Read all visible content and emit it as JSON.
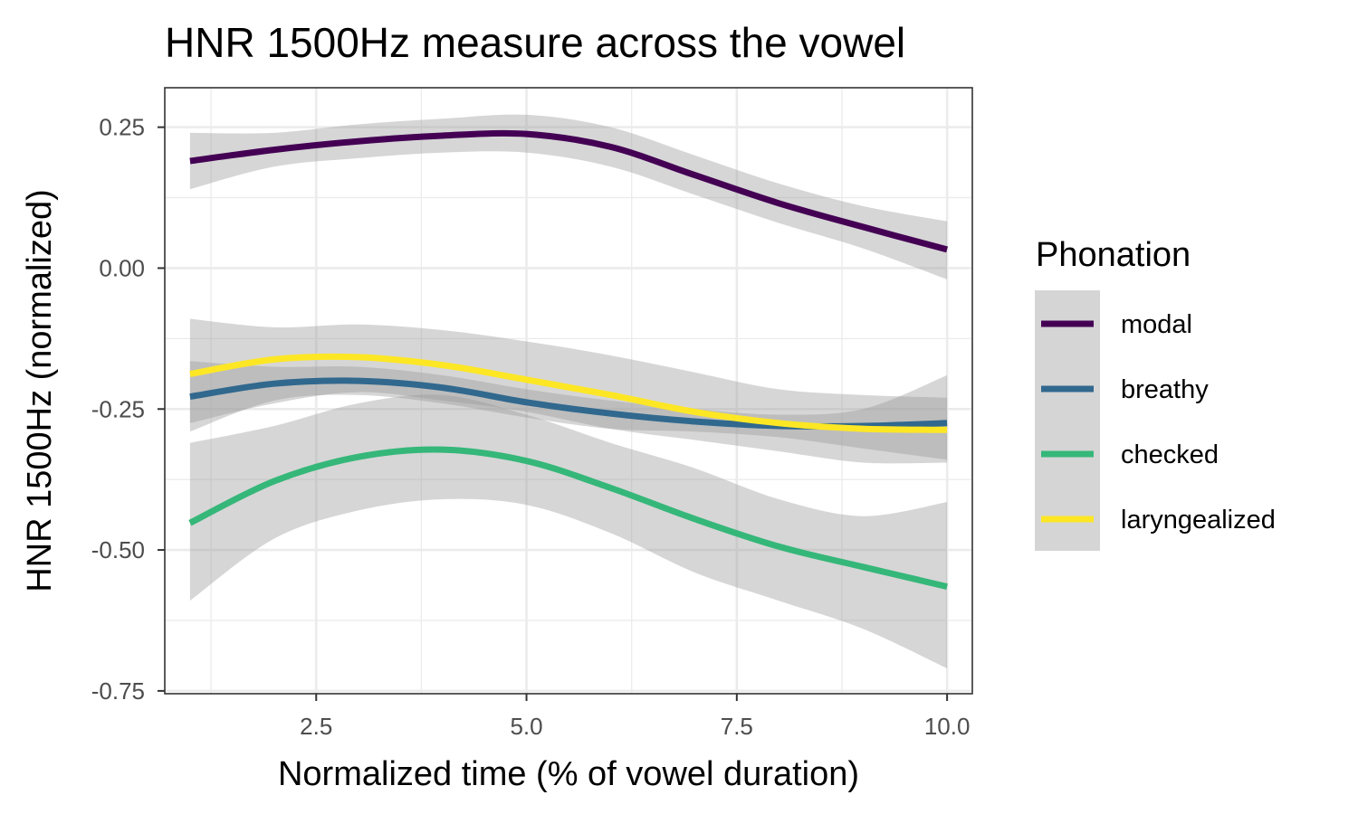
{
  "chart_data": {
    "type": "line",
    "title": "HNR 1500Hz measure across the vowel",
    "xlabel": "Normalized time (% of vowel duration)",
    "ylabel": "HNR 1500Hz (normalized)",
    "xlim": [
      0.7,
      10.3
    ],
    "ylim": [
      -0.755,
      0.32
    ],
    "xticks": [
      2.5,
      5.0,
      7.5,
      10.0
    ],
    "xtick_labels": [
      "2.5",
      "5.0",
      "7.5",
      "10.0"
    ],
    "yticks": [
      0.25,
      0.0,
      -0.25,
      -0.5,
      -0.75
    ],
    "ytick_labels": [
      "0.25",
      "0.00",
      "-0.25",
      "-0.50",
      "-0.75"
    ],
    "x_minor_gridlines": [
      1.25,
      3.75,
      6.25,
      8.75
    ],
    "y_minor_gridlines": [
      0.125,
      -0.125,
      -0.375,
      -0.625
    ],
    "grid": true,
    "legend": {
      "title": "Phonation",
      "position": "right"
    },
    "series": [
      {
        "name": "modal",
        "color": "#440154",
        "x": [
          1,
          2,
          3,
          4,
          5,
          6,
          7,
          8,
          9,
          10
        ],
        "y": [
          0.19,
          0.21,
          0.225,
          0.235,
          0.238,
          0.215,
          0.165,
          0.115,
          0.073,
          0.033
        ],
        "lower": [
          0.14,
          0.18,
          0.195,
          0.205,
          0.205,
          0.18,
          0.13,
          0.08,
          0.035,
          -0.02
        ],
        "upper": [
          0.24,
          0.24,
          0.255,
          0.265,
          0.272,
          0.25,
          0.2,
          0.15,
          0.11,
          0.083
        ]
      },
      {
        "name": "breathy",
        "color": "#31688e",
        "x": [
          1,
          2,
          3,
          4,
          5,
          6,
          7,
          8,
          9,
          10
        ],
        "y": [
          -0.228,
          -0.205,
          -0.2,
          -0.212,
          -0.238,
          -0.258,
          -0.272,
          -0.28,
          -0.28,
          -0.275
        ],
        "lower": [
          -0.29,
          -0.235,
          -0.225,
          -0.24,
          -0.265,
          -0.285,
          -0.29,
          -0.3,
          -0.32,
          -0.34
        ],
        "upper": [
          -0.165,
          -0.175,
          -0.175,
          -0.19,
          -0.215,
          -0.235,
          -0.25,
          -0.26,
          -0.25,
          -0.19
        ]
      },
      {
        "name": "checked",
        "color": "#35b779",
        "x": [
          1,
          2,
          3,
          4,
          5,
          6,
          7,
          8,
          9,
          10
        ],
        "y": [
          -0.452,
          -0.378,
          -0.335,
          -0.322,
          -0.342,
          -0.39,
          -0.445,
          -0.494,
          -0.53,
          -0.565
        ],
        "lower": [
          -0.59,
          -0.48,
          -0.43,
          -0.41,
          -0.42,
          -0.47,
          -0.54,
          -0.59,
          -0.64,
          -0.71
        ],
        "upper": [
          -0.31,
          -0.28,
          -0.24,
          -0.225,
          -0.26,
          -0.31,
          -0.355,
          -0.41,
          -0.44,
          -0.415
        ]
      },
      {
        "name": "laryngealized",
        "color": "#fde725",
        "x": [
          1,
          2,
          3,
          4,
          5,
          6,
          7,
          8,
          9,
          10
        ],
        "y": [
          -0.188,
          -0.162,
          -0.158,
          -0.172,
          -0.198,
          -0.225,
          -0.255,
          -0.275,
          -0.285,
          -0.287
        ],
        "lower": [
          -0.275,
          -0.24,
          -0.22,
          -0.235,
          -0.255,
          -0.285,
          -0.305,
          -0.325,
          -0.345,
          -0.345
        ],
        "upper": [
          -0.09,
          -0.105,
          -0.1,
          -0.11,
          -0.13,
          -0.155,
          -0.185,
          -0.215,
          -0.225,
          -0.23
        ]
      }
    ]
  }
}
